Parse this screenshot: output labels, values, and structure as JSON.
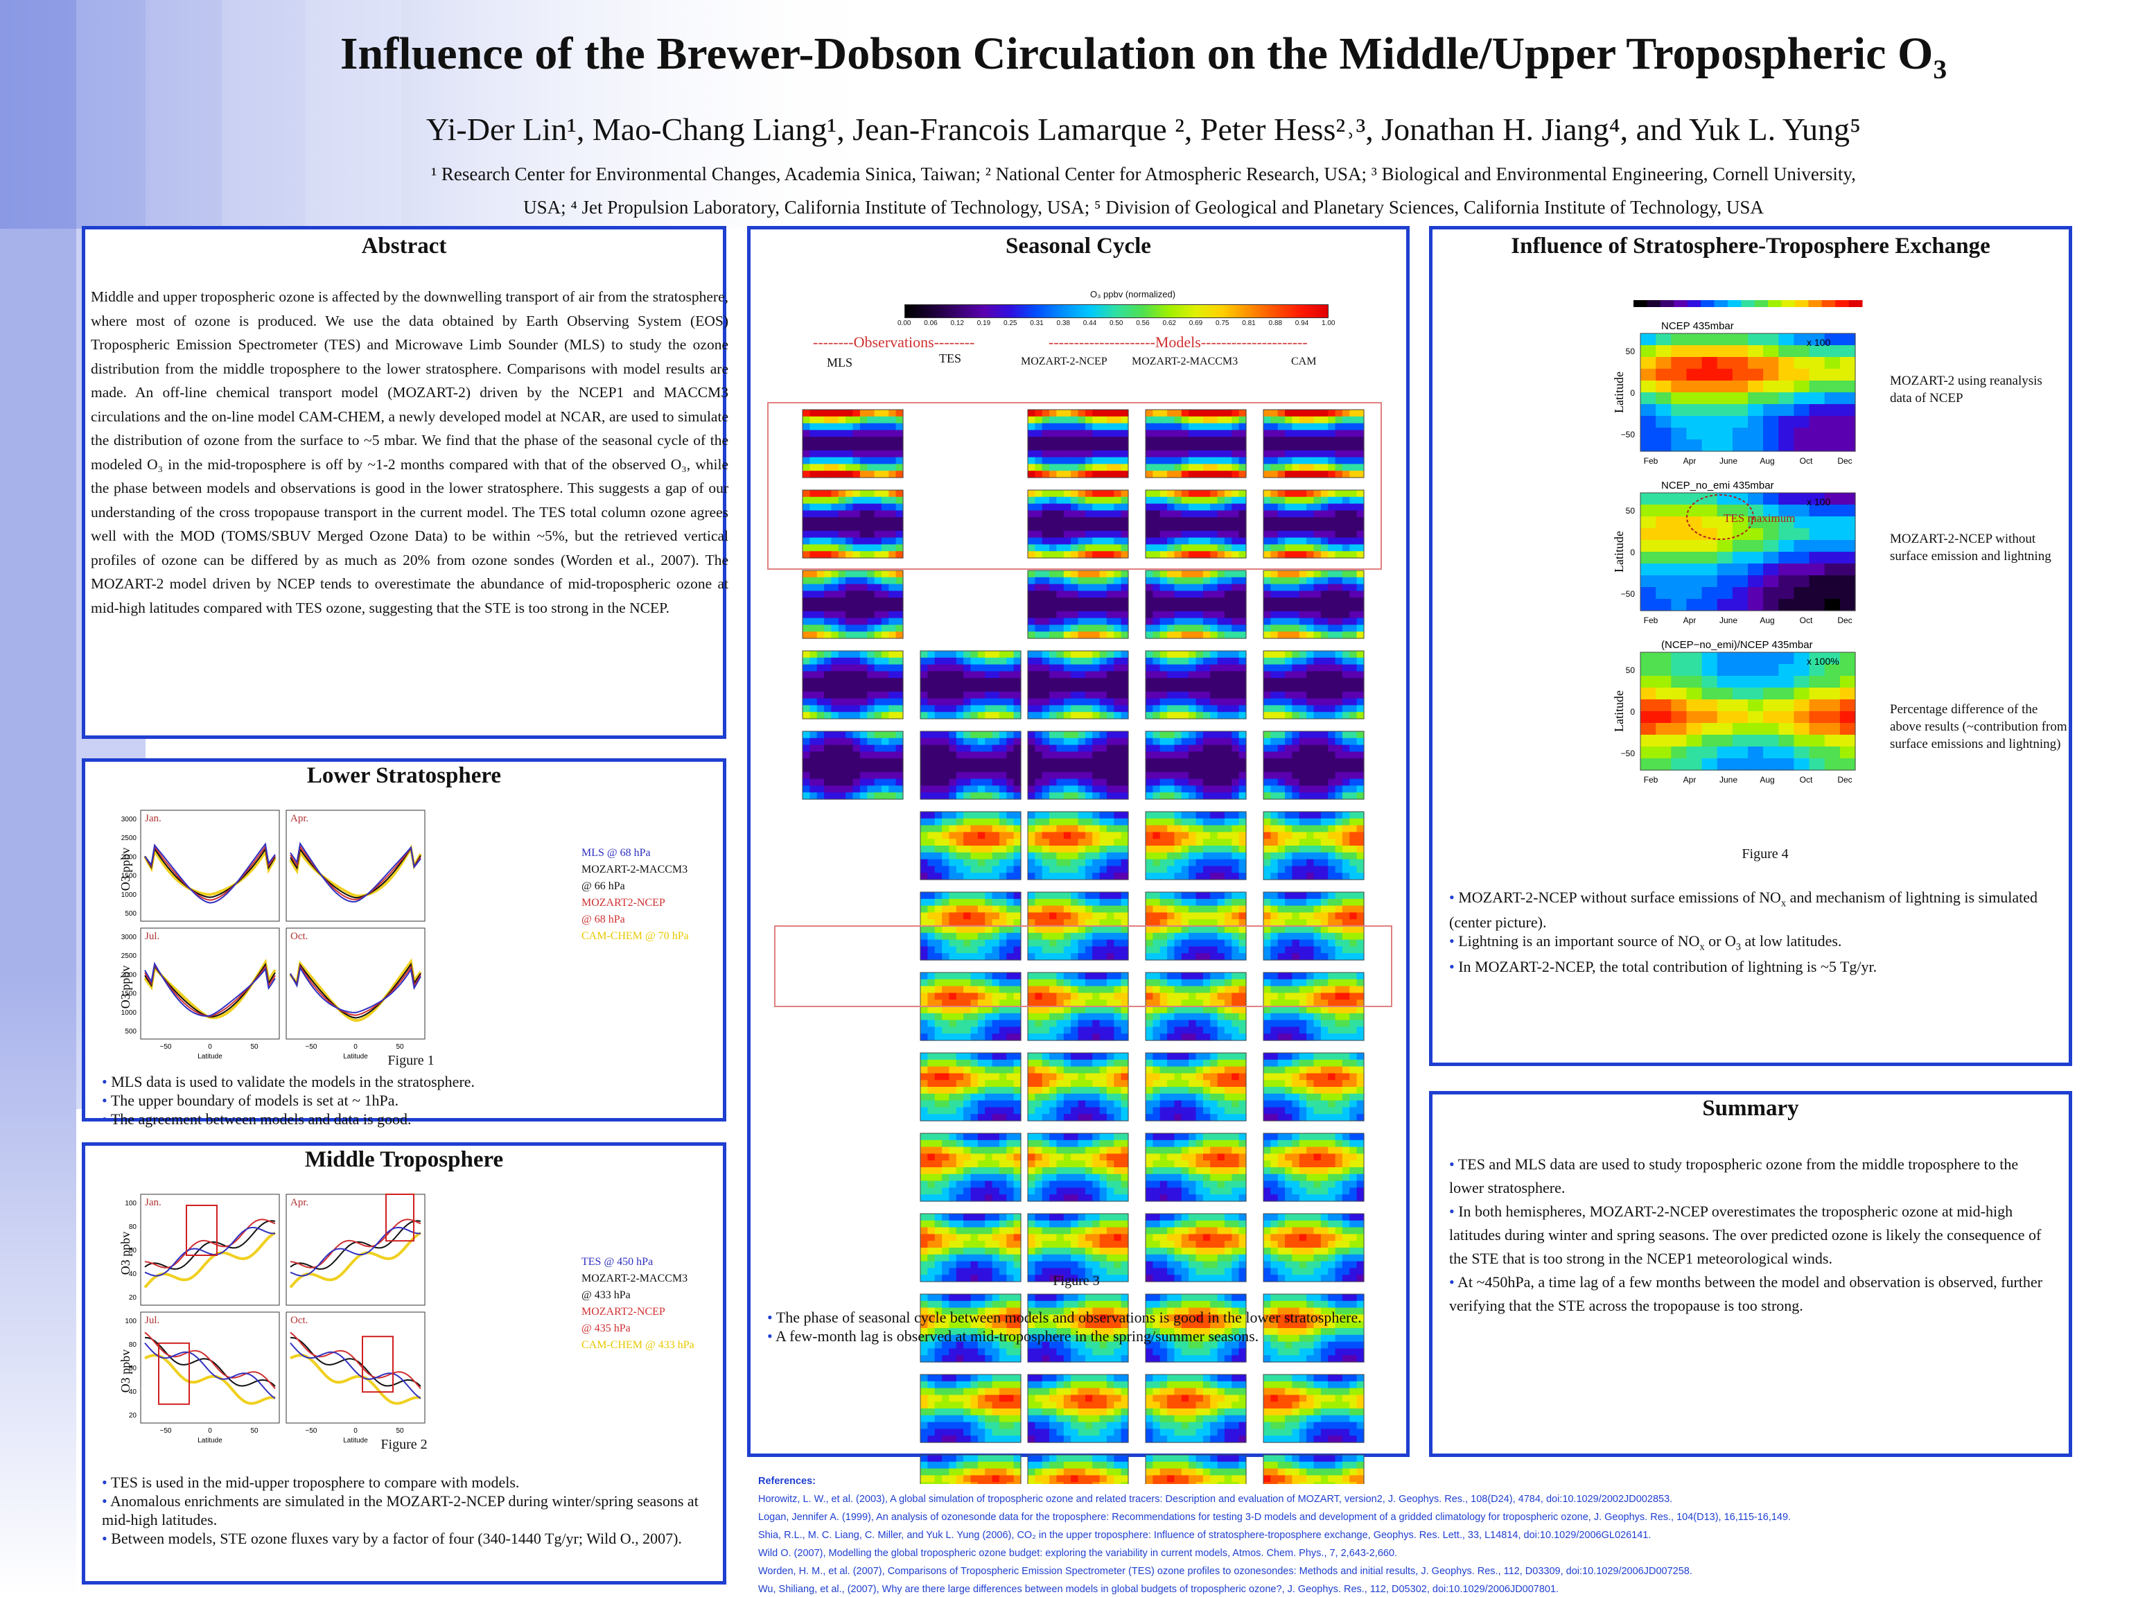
{
  "poster": {
    "title": "Influence of the Brewer-Dobson Circulation on the Middle/Upper Tropospheric O3",
    "authors": "Yi-Der Lin¹, Mao-Chang Liang¹, Jean-Francois Lamarque ², Peter Hess²˒³, Jonathan H. Jiang⁴, and Yuk L. Yung⁵",
    "affiliations_line1": "¹ Research Center for Environmental Changes, Academia Sinica, Taiwan; ² National Center for Atmospheric Research, USA; ³ Biological and Environmental Engineering, Cornell University,",
    "affiliations_line2": "USA; ⁴ Jet Propulsion Laboratory, California Institute of Technology, USA; ⁵ Division of Geological and Planetary Sciences, California Institute of Technology, USA"
  },
  "abstract": {
    "heading": "Abstract",
    "text": "Middle and upper tropospheric ozone is affected by the downwelling transport of air from the stratosphere, where most of ozone is produced. We use the data obtained by Earth Observing System (EOS) Tropospheric Emission Spectrometer (TES) and Microwave Limb Sounder (MLS) to study the ozone distribution from the middle troposphere to the lower stratosphere. Comparisons with model results are made. An off-line chemical transport model (MOZART-2) driven by the NCEP1 and MACCM3 circulations and the on-line model CAM-CHEM, a newly developed model at NCAR, are used to simulate the distribution of ozone from the surface to ~5 mbar. We find that the phase of the seasonal cycle of the modeled O₃ in the mid-troposphere is off by ~1-2 months compared with that of the observed O₃, while the phase between models and observations is good in the lower stratosphere. This suggests a gap of our understanding of the cross tropopause transport in the current model. The TES total column ozone agrees well with the MOD (TOMS/SBUV Merged Ozone Data) to be within ~5%, but the retrieved vertical profiles of ozone can be differed by as much as 20% from ozone sondes (Worden et al., 2007). The MOZART-2 model driven by NCEP tends to overestimate the abundance of mid-tropospheric ozone at mid-high latitudes compared with TES ozone, suggesting that the STE is too strong in the NCEP."
  },
  "lower_strat": {
    "heading": "Lower Stratosphere",
    "caption": "Figure 1",
    "ylabel": "O3 ppbv",
    "xlabel": "Latitude",
    "legend": [
      "MLS @ 68 hPa",
      "MOZART-2-MACCM3",
      "@ 66 hPa",
      "MOZART2-NCEP",
      "@ 68 hPa",
      "CAM-CHEM @ 70 hPa"
    ],
    "panels": [
      "Jan.",
      "Apr.",
      "Jul.",
      "Oct."
    ],
    "yticks": [
      "3000",
      "2500",
      "2000",
      "1500",
      "1000",
      "500"
    ],
    "xticks": [
      "−50",
      "0",
      "50"
    ],
    "bullets": [
      "MLS data is used to validate the models in the stratosphere.",
      "The upper boundary of models is set at ~ 1hPa.",
      "The agreement between models and data is good."
    ]
  },
  "mid_trop": {
    "heading": "Middle Troposphere",
    "caption": "Figure 2",
    "ylabel": "O3 ppbv",
    "xlabel": "Latitude",
    "legend": [
      "TES @ 450 hPa",
      "MOZART-2-MACCM3",
      "@ 433 hPa",
      "MOZART2-NCEP",
      "@ 435 hPa",
      "CAM-CHEM @ 433 hPa"
    ],
    "panels": [
      "Jan.",
      "Apr.",
      "Jul.",
      "Oct."
    ],
    "yticks": [
      "100",
      "80",
      "60",
      "40",
      "20"
    ],
    "xticks": [
      "−50",
      "0",
      "50"
    ],
    "bullets": [
      "TES is used in the mid-upper troposphere to compare with models.",
      "Anomalous enrichments are simulated in the MOZART-2-NCEP during winter/spring seasons at mid-high latitudes.",
      "Between models, STE ozone fluxes vary by a factor of four (340-1440 Tg/yr; Wild O., 2007)."
    ]
  },
  "seasonal": {
    "heading": "Seasonal Cycle",
    "colorbar_title": "O₃ ppbv (normalized)",
    "colorbar_ticks": [
      "0.00",
      "0.06",
      "0.12",
      "0.19",
      "0.25",
      "0.31",
      "0.38",
      "0.44",
      "0.50",
      "0.56",
      "0.62",
      "0.69",
      "0.75",
      "0.81",
      "0.88",
      "0.94",
      "1.00"
    ],
    "obs_label": "--------Observations--------",
    "models_label": "---------------------Models---------------------",
    "columns": [
      "MLS",
      "TES",
      "MOZART-2-NCEP",
      "MOZART-2-MACCM3",
      "CAM"
    ],
    "caption": "Figure 3",
    "bullets": [
      "The phase of seasonal cycle between models and observations is good in the lower stratosphere.",
      "A few-month lag is observed at mid-troposphere in the spring/summer seasons."
    ]
  },
  "ste": {
    "heading": "Influence of Stratosphere-Troposphere Exchange",
    "ylabel": "Latitude",
    "months": [
      "Feb",
      "Apr",
      "June",
      "Aug",
      "Oct",
      "Dec"
    ],
    "lat_ticks": [
      "50",
      "0",
      "−50"
    ],
    "map1_title": "NCEP 435mbar",
    "map2_title": "NCEP_no_emi 435mbar",
    "map3_title": "(NCEP−no_emi)/NCEP 435mbar",
    "tes_max": "TES maximum",
    "scale1": "x 100",
    "scale2": "x 100",
    "scale3": "x 100%",
    "desc1": "MOZART-2 using reanalysis data of NCEP",
    "desc2": "MOZART-2-NCEP without surface emission and lightning",
    "desc3": "Percentage difference of the above results (~contribution from surface emissions and lightning)",
    "caption": "Figure 4",
    "bullets": [
      "MOZART-2-NCEP without surface emissions of NOx and mechanism of lightning is simulated (center picture).",
      "Lightning is an important source of NOx or O₃ at low latitudes.",
      "In MOZART-2-NCEP, the total contribution of lightning is ~5 Tg/yr."
    ]
  },
  "summary": {
    "heading": "Summary",
    "bullets": [
      "TES and MLS data are used to study tropospheric ozone from the middle troposphere to the lower stratosphere.",
      "In both hemispheres, MOZART-2-NCEP overestimates the tropospheric ozone at mid-high latitudes during winter and spring seasons. The over predicted ozone is likely the consequence of the STE that is too strong in the NCEP1 meteorological winds.",
      "At ~450hPa, a time lag of a few months between the model and observation is observed, further verifying that the STE across the tropopause is too strong."
    ]
  },
  "references": {
    "heading": "References:",
    "items": [
      "Horowitz, L. W., et al. (2003), A global simulation of tropospheric ozone and related tracers: Description and evaluation of MOZART, version2, J. Geophys. Res., 108(D24), 4784, doi:10.1029/2002JD002853.",
      "Logan, Jennifer A. (1999), An analysis of ozonesonde data for the troposphere: Recommendations for testing 3-D models and development of a gridded climatology for tropospheric ozone, J. Geophys. Res., 104(D13), 16,115-16,149.",
      "Shia, R.L., M. C. Liang, C. Miller, and Yuk L. Yung (2006), CO₂ in the upper troposphere: Influence of stratosphere-troposphere exchange, Geophys. Res. Lett., 33, L14814, doi:10.1029/2006GL026141.",
      "Wild O. (2007), Modelling the global tropospheric ozone budget: exploring the variability in current models, Atmos. Chem. Phys., 7, 2,643-2,660.",
      "Worden, H. M., et al. (2007), Comparisons of Tropospheric Emission Spectrometer (TES) ozone profiles to ozonesondes: Methods and initial results, J. Geophys. Res., 112, D03309, doi:10.1029/2006JD007258.",
      "Wu, Shiliang, et al., (2007), Why are there large differences between models in global budgets of tropospheric ozone?, J. Geophys. Res., 112, D05302, doi:10.1029/2006JD007801."
    ]
  },
  "colors": {
    "frame": "#1f3fd0",
    "obs": "#3030c0",
    "maccm3": "#111111",
    "ncep": "#d03030",
    "cam": "#f0d020"
  }
}
